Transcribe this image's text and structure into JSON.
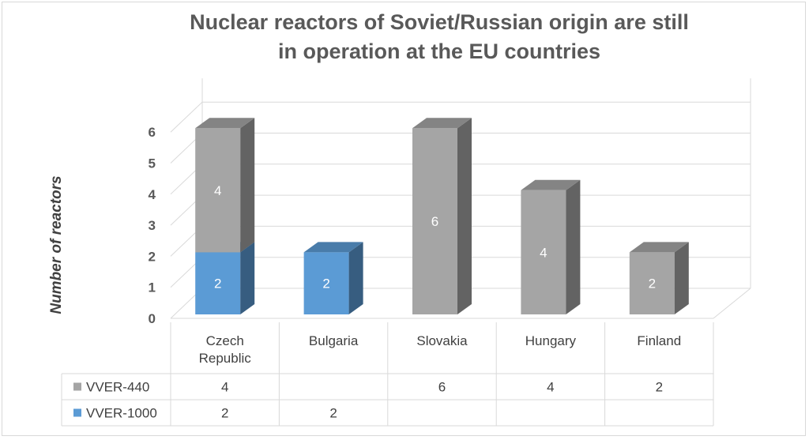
{
  "chart_data": {
    "type": "bar",
    "stacked": true,
    "three_d": true,
    "title": "Nuclear reactors of Soviet/Russian origin are still in operation at the EU countries",
    "ylabel": "Number of reactors",
    "xlabel": "",
    "categories": [
      "Czech Republic",
      "Bulgaria",
      "Slovakia",
      "Hungary",
      "Finland"
    ],
    "series": [
      {
        "name": "VVER-1000",
        "values": [
          2,
          2,
          null,
          null,
          null
        ],
        "color": "#5b9bd5"
      },
      {
        "name": "VVER-440",
        "values": [
          4,
          null,
          6,
          4,
          2
        ],
        "color": "#a5a5a5"
      }
    ],
    "ylim": [
      0,
      6
    ],
    "yticks": [
      "0",
      "1",
      "2",
      "3",
      "4",
      "5",
      "6"
    ],
    "grid": true,
    "legend": "data-table",
    "data_table_rows": [
      {
        "series": "VVER-440",
        "cells": [
          "4",
          "",
          "6",
          "4",
          "2"
        ]
      },
      {
        "series": "VVER-1000",
        "cells": [
          "2",
          "2",
          "",
          "",
          ""
        ]
      }
    ]
  }
}
